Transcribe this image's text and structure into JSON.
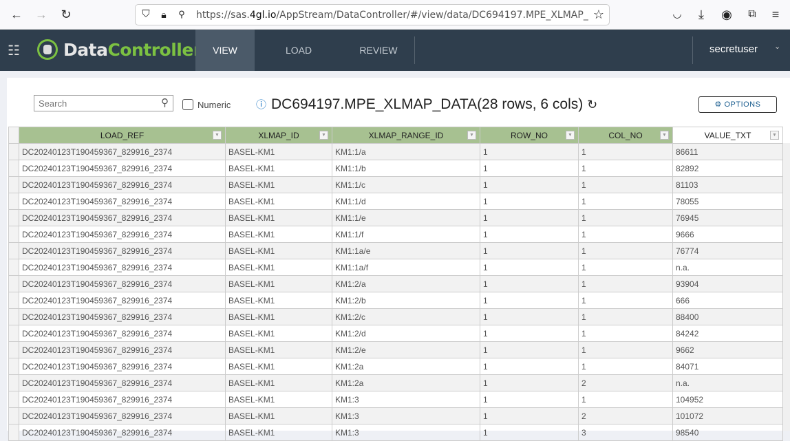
{
  "browser": {
    "url_prefix": "https://sas.",
    "url_domain": "4gl.io",
    "url_rest": "/AppStream/DataController/#/view/data/DC694197.MPE_XLMAP_"
  },
  "app": {
    "logo_a": "Data",
    "logo_b": "Controller",
    "brand_color": "#7cc142",
    "nav_color": "#2f3e4d",
    "tabs": [
      {
        "label": "VIEW",
        "active": true
      },
      {
        "label": "LOAD"
      },
      {
        "label": "REVIEW"
      }
    ],
    "user": "secretuser"
  },
  "toolbar": {
    "search_placeholder": "Search",
    "numeric_label": "Numeric",
    "title": "DC694197.MPE_XLMAP_DATA(28 rows, 6 cols)",
    "options_label": "OPTIONS"
  },
  "table": {
    "columns": [
      "LOAD_REF",
      "XLMAP_ID",
      "XLMAP_RANGE_ID",
      "ROW_NO",
      "COL_NO",
      "VALUE_TXT"
    ],
    "rows": [
      [
        "DC20240123T190459367_829916_2374",
        "BASEL-KM1",
        "KM1:1/a",
        "1",
        "1",
        "86611"
      ],
      [
        "DC20240123T190459367_829916_2374",
        "BASEL-KM1",
        "KM1:1/b",
        "1",
        "1",
        "82892"
      ],
      [
        "DC20240123T190459367_829916_2374",
        "BASEL-KM1",
        "KM1:1/c",
        "1",
        "1",
        "81103"
      ],
      [
        "DC20240123T190459367_829916_2374",
        "BASEL-KM1",
        "KM1:1/d",
        "1",
        "1",
        "78055"
      ],
      [
        "DC20240123T190459367_829916_2374",
        "BASEL-KM1",
        "KM1:1/e",
        "1",
        "1",
        "76945"
      ],
      [
        "DC20240123T190459367_829916_2374",
        "BASEL-KM1",
        "KM1:1/f",
        "1",
        "1",
        "9666"
      ],
      [
        "DC20240123T190459367_829916_2374",
        "BASEL-KM1",
        "KM1:1a/e",
        "1",
        "1",
        "76774"
      ],
      [
        "DC20240123T190459367_829916_2374",
        "BASEL-KM1",
        "KM1:1a/f",
        "1",
        "1",
        "n.a."
      ],
      [
        "DC20240123T190459367_829916_2374",
        "BASEL-KM1",
        "KM1:2/a",
        "1",
        "1",
        "93904"
      ],
      [
        "DC20240123T190459367_829916_2374",
        "BASEL-KM1",
        "KM1:2/b",
        "1",
        "1",
        "666"
      ],
      [
        "DC20240123T190459367_829916_2374",
        "BASEL-KM1",
        "KM1:2/c",
        "1",
        "1",
        "88400"
      ],
      [
        "DC20240123T190459367_829916_2374",
        "BASEL-KM1",
        "KM1:2/d",
        "1",
        "1",
        "84242"
      ],
      [
        "DC20240123T190459367_829916_2374",
        "BASEL-KM1",
        "KM1:2/e",
        "1",
        "1",
        "9662"
      ],
      [
        "DC20240123T190459367_829916_2374",
        "BASEL-KM1",
        "KM1:2a",
        "1",
        "1",
        "84071"
      ],
      [
        "DC20240123T190459367_829916_2374",
        "BASEL-KM1",
        "KM1:2a",
        "1",
        "2",
        "n.a."
      ],
      [
        "DC20240123T190459367_829916_2374",
        "BASEL-KM1",
        "KM1:3",
        "1",
        "1",
        "104952"
      ],
      [
        "DC20240123T190459367_829916_2374",
        "BASEL-KM1",
        "KM1:3",
        "1",
        "2",
        "101072"
      ],
      [
        "DC20240123T190459367_829916_2374",
        "BASEL-KM1",
        "KM1:3",
        "1",
        "3",
        "98540"
      ]
    ]
  }
}
